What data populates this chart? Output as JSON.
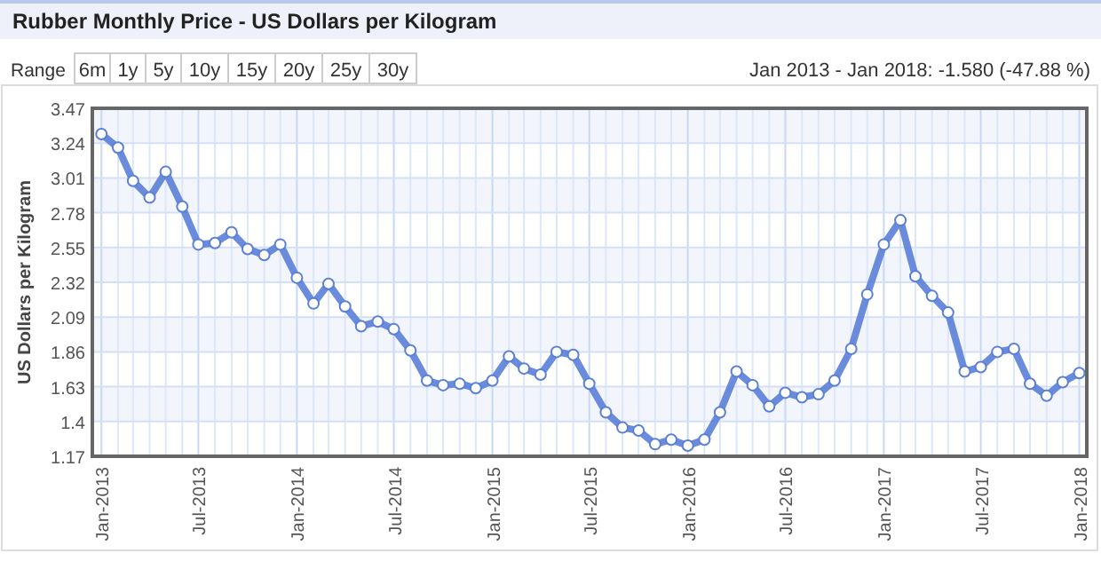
{
  "chart_data": {
    "type": "line",
    "title": "Rubber Monthly Price - US Dollars per Kilogram",
    "subtitle": "Jan 2013 - Jan 2018: -1.580 (-47.88 %)",
    "annotations": [
      "Range",
      "6m",
      "1y",
      "5y",
      "10y",
      "15y",
      "20y",
      "25y",
      "30y"
    ],
    "ylabel": "US Dollars per Kilogram",
    "x": [
      "2013-01",
      "2013-02",
      "2013-03",
      "2013-04",
      "2013-05",
      "2013-06",
      "2013-07",
      "2013-08",
      "2013-09",
      "2013-10",
      "2013-11",
      "2013-12",
      "2014-01",
      "2014-02",
      "2014-03",
      "2014-04",
      "2014-05",
      "2014-06",
      "2014-07",
      "2014-08",
      "2014-09",
      "2014-10",
      "2014-11",
      "2014-12",
      "2015-01",
      "2015-02",
      "2015-03",
      "2015-04",
      "2015-05",
      "2015-06",
      "2015-07",
      "2015-08",
      "2015-09",
      "2015-10",
      "2015-11",
      "2015-12",
      "2016-01",
      "2016-02",
      "2016-03",
      "2016-04",
      "2016-05",
      "2016-06",
      "2016-07",
      "2016-08",
      "2016-09",
      "2016-10",
      "2016-11",
      "2016-12",
      "2017-01",
      "2017-02",
      "2017-03",
      "2017-04",
      "2017-05",
      "2017-06",
      "2017-07",
      "2017-08",
      "2017-09",
      "2017-10",
      "2017-11",
      "2017-12",
      "2018-01"
    ],
    "series": [
      {
        "color": "#5b80d8",
        "values": [
          3.3,
          3.21,
          2.99,
          2.88,
          3.05,
          2.82,
          2.57,
          2.58,
          2.65,
          2.54,
          2.5,
          2.57,
          2.35,
          2.18,
          2.31,
          2.16,
          2.03,
          2.06,
          2.01,
          1.87,
          1.67,
          1.64,
          1.65,
          1.62,
          1.67,
          1.83,
          1.75,
          1.71,
          1.86,
          1.84,
          1.65,
          1.46,
          1.36,
          1.34,
          1.25,
          1.28,
          1.24,
          1.28,
          1.46,
          1.73,
          1.64,
          1.5,
          1.59,
          1.56,
          1.58,
          1.67,
          1.88,
          2.24,
          2.57,
          2.73,
          2.36,
          2.23,
          2.12,
          1.73,
          1.76,
          1.86,
          1.88,
          1.65,
          1.57,
          1.66,
          1.72
        ]
      }
    ],
    "xlim": [
      "2012-12-15",
      "2018-01-15"
    ],
    "xticks": [
      {
        "value": "2013-01",
        "label": "Jan-2013"
      },
      {
        "value": "2013-02",
        "label": null
      },
      {
        "value": "2013-03",
        "label": null
      },
      {
        "value": "2013-04",
        "label": null
      },
      {
        "value": "2013-05",
        "label": null
      },
      {
        "value": "2013-06",
        "label": null
      },
      {
        "value": "2013-07",
        "label": "Jul-2013"
      },
      {
        "value": "2013-08",
        "label": null
      },
      {
        "value": "2013-09",
        "label": null
      },
      {
        "value": "2013-10",
        "label": null
      },
      {
        "value": "2013-11",
        "label": null
      },
      {
        "value": "2013-12",
        "label": null
      },
      {
        "value": "2014-01",
        "label": "Jan-2014"
      },
      {
        "value": "2014-02",
        "label": null
      },
      {
        "value": "2014-03",
        "label": null
      },
      {
        "value": "2014-04",
        "label": null
      },
      {
        "value": "2014-05",
        "label": null
      },
      {
        "value": "2014-06",
        "label": null
      },
      {
        "value": "2014-07",
        "label": "Jul-2014"
      },
      {
        "value": "2014-08",
        "label": null
      },
      {
        "value": "2014-09",
        "label": null
      },
      {
        "value": "2014-10",
        "label": null
      },
      {
        "value": "2014-11",
        "label": null
      },
      {
        "value": "2014-12",
        "label": null
      },
      {
        "value": "2015-01",
        "label": "Jan-2015"
      },
      {
        "value": "2015-02",
        "label": null
      },
      {
        "value": "2015-03",
        "label": null
      },
      {
        "value": "2015-04",
        "label": null
      },
      {
        "value": "2015-05",
        "label": null
      },
      {
        "value": "2015-06",
        "label": null
      },
      {
        "value": "2015-07",
        "label": "Jul-2015"
      },
      {
        "value": "2015-08",
        "label": null
      },
      {
        "value": "2015-09",
        "label": null
      },
      {
        "value": "2015-10",
        "label": null
      },
      {
        "value": "2015-11",
        "label": null
      },
      {
        "value": "2015-12",
        "label": null
      },
      {
        "value": "2016-01",
        "label": "Jan-2016"
      },
      {
        "value": "2016-02",
        "label": null
      },
      {
        "value": "2016-03",
        "label": null
      },
      {
        "value": "2016-04",
        "label": null
      },
      {
        "value": "2016-05",
        "label": null
      },
      {
        "value": "2016-06",
        "label": null
      },
      {
        "value": "2016-07",
        "label": "Jul-2016"
      },
      {
        "value": "2016-08",
        "label": null
      },
      {
        "value": "2016-09",
        "label": null
      },
      {
        "value": "2016-10",
        "label": null
      },
      {
        "value": "2016-11",
        "label": null
      },
      {
        "value": "2016-12",
        "label": null
      },
      {
        "value": "2017-01",
        "label": "Jan-2017"
      },
      {
        "value": "2017-02",
        "label": null
      },
      {
        "value": "2017-03",
        "label": null
      },
      {
        "value": "2017-04",
        "label": null
      },
      {
        "value": "2017-05",
        "label": null
      },
      {
        "value": "2017-06",
        "label": null
      },
      {
        "value": "2017-07",
        "label": "Jul-2017"
      },
      {
        "value": "2017-08",
        "label": null
      },
      {
        "value": "2017-09",
        "label": null
      },
      {
        "value": "2017-10",
        "label": null
      },
      {
        "value": "2017-11",
        "label": null
      },
      {
        "value": "2017-12",
        "label": null
      },
      {
        "value": "2018-01",
        "label": "Jan-2018"
      }
    ],
    "ylim": [
      1.17,
      3.47
    ],
    "yticks": [
      1.17,
      1.4,
      1.63,
      1.86,
      2.09,
      2.32,
      2.55,
      2.78,
      3.01,
      3.24,
      3.47
    ],
    "grid": true,
    "marker": "circle",
    "line_style": "solid"
  }
}
